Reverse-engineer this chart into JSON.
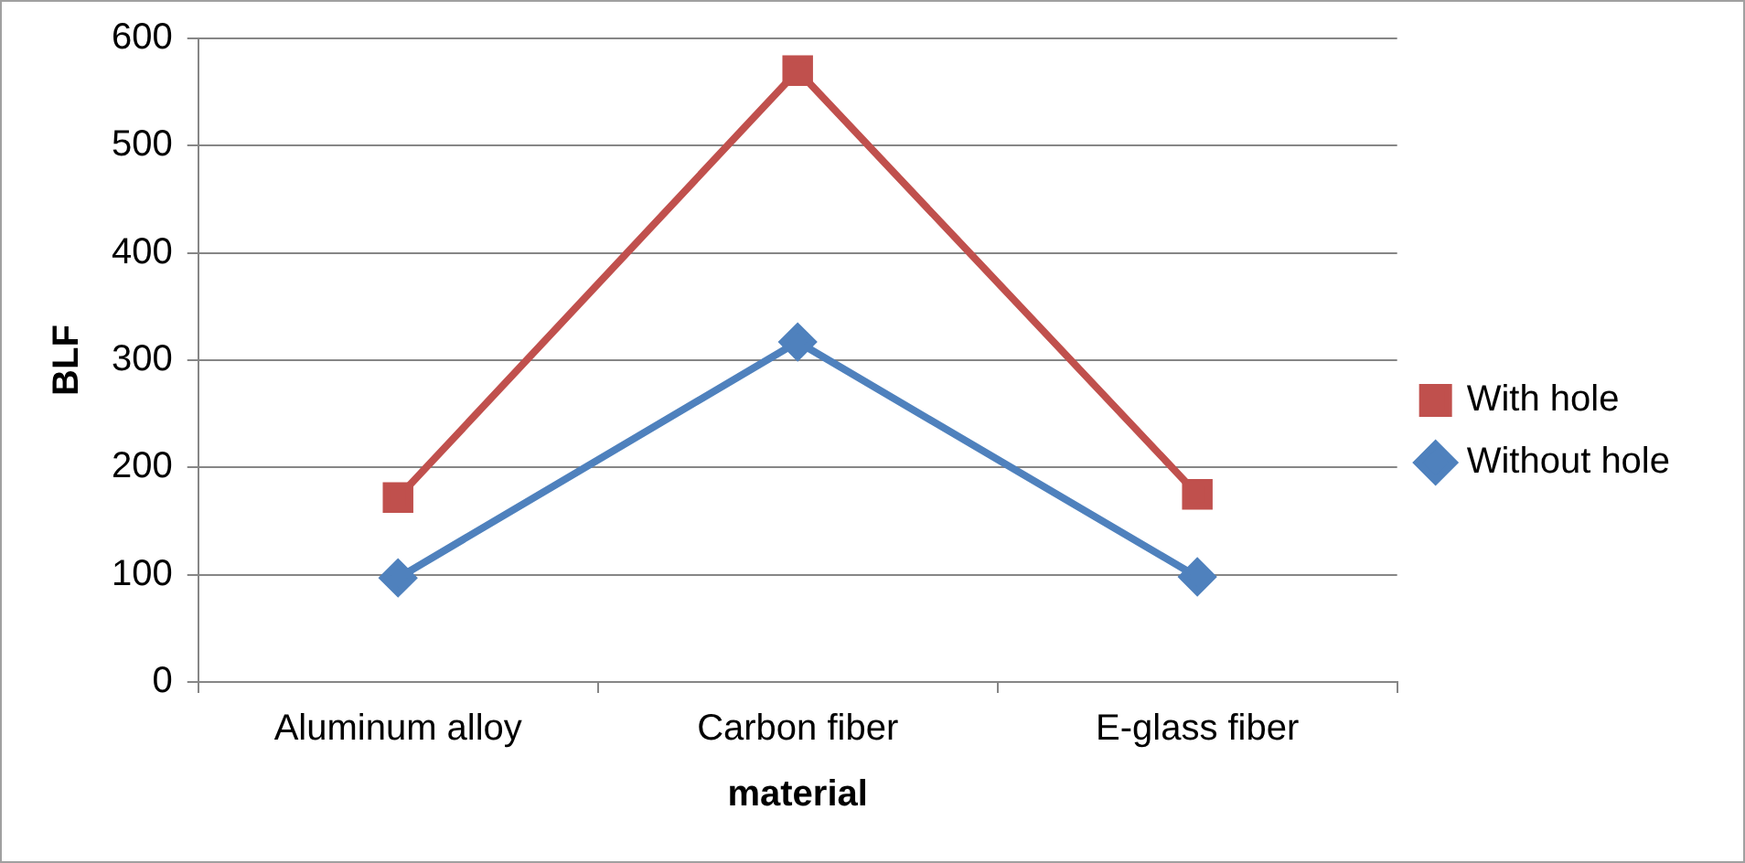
{
  "chart_data": {
    "type": "line",
    "xlabel": "material",
    "ylabel": "BLF",
    "categories": [
      "Aluminum alloy",
      "Carbon fiber",
      "E-glass fiber"
    ],
    "series": [
      {
        "name": "With hole",
        "color": "#c0504d",
        "marker": "square",
        "values": [
          172,
          570,
          175
        ]
      },
      {
        "name": "Without hole",
        "color": "#4f81bd",
        "marker": "diamond",
        "values": [
          97,
          317,
          98
        ]
      }
    ],
    "ylim": [
      0,
      600
    ],
    "yticks": [
      0,
      100,
      200,
      300,
      400,
      500,
      600
    ],
    "grid": "y",
    "legend": "right",
    "line_style": "solid"
  }
}
